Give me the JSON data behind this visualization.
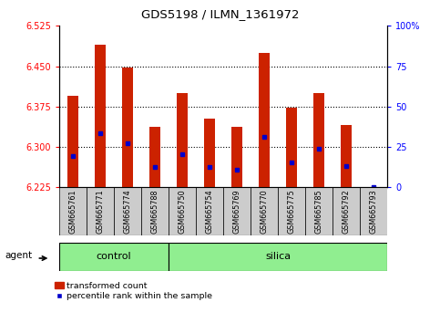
{
  "title": "GDS5198 / ILMN_1361972",
  "samples": [
    "GSM665761",
    "GSM665771",
    "GSM665774",
    "GSM665788",
    "GSM665750",
    "GSM665754",
    "GSM665769",
    "GSM665770",
    "GSM665775",
    "GSM665785",
    "GSM665792",
    "GSM665793"
  ],
  "groups": [
    "control",
    "control",
    "control",
    "control",
    "silica",
    "silica",
    "silica",
    "silica",
    "silica",
    "silica",
    "silica",
    "silica"
  ],
  "bar_tops": [
    6.395,
    6.49,
    6.447,
    6.338,
    6.4,
    6.352,
    6.338,
    6.475,
    6.373,
    6.4,
    6.34,
    6.226
  ],
  "bar_bottom": 6.225,
  "blue_dot_y": [
    6.283,
    6.325,
    6.307,
    6.262,
    6.287,
    6.262,
    6.258,
    6.318,
    6.272,
    6.296,
    6.265,
    6.226
  ],
  "ylim": [
    6.225,
    6.525
  ],
  "yticks": [
    6.225,
    6.3,
    6.375,
    6.45,
    6.525
  ],
  "right_yticks": [
    0,
    25,
    50,
    75,
    100
  ],
  "right_ytick_labels": [
    "0",
    "25",
    "50",
    "75",
    "100%"
  ],
  "dotted_lines": [
    6.3,
    6.375,
    6.45
  ],
  "bar_color": "#cc2200",
  "blue_color": "#0000cc",
  "group_color": "#90ee90",
  "tick_bg": "#cccccc",
  "legend_red_label": "transformed count",
  "legend_blue_label": "percentile rank within the sample",
  "agent_label": "agent",
  "n_control": 4,
  "n_silica": 8,
  "bar_width": 0.4
}
